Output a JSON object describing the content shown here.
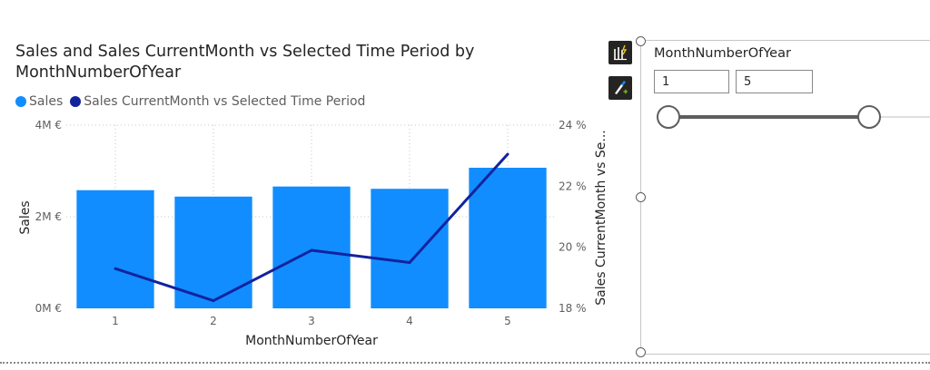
{
  "chart_data": {
    "type": "bar",
    "title": "Sales and Sales CurrentMonth vs Selected Time Period by MonthNumberOfYear",
    "xlabel": "MonthNumberOfYear",
    "ylabel": "Sales",
    "y2label": "Sales CurrentMonth vs Se...",
    "categories": [
      "1",
      "2",
      "3",
      "4",
      "5"
    ],
    "ylim": [
      0,
      4000000
    ],
    "y2lim": [
      18,
      24
    ],
    "yticks": [
      "0M €",
      "2M €",
      "4M €"
    ],
    "y2ticks": [
      "18 %",
      "20 %",
      "22 %",
      "24 %"
    ],
    "legend_position": "top-left",
    "grid": true,
    "series": [
      {
        "name": "Sales",
        "type": "bar",
        "axis": "left",
        "color": "#118dff",
        "values": [
          2580000,
          2440000,
          2660000,
          2610000,
          3070000
        ]
      },
      {
        "name": "Sales CurrentMonth vs Selected Time Period",
        "type": "line",
        "axis": "right",
        "color": "#12239e",
        "values": [
          19.3,
          18.25,
          19.9,
          19.5,
          23.05
        ]
      }
    ]
  },
  "toolbar": {
    "icons": [
      "format-visual-icon",
      "format-brush-icon"
    ]
  },
  "slicer": {
    "title": "MonthNumberOfYear",
    "start_value": "1",
    "end_value": "5",
    "range_min": 1,
    "range_max": 5,
    "track_color": "#605e5c"
  }
}
